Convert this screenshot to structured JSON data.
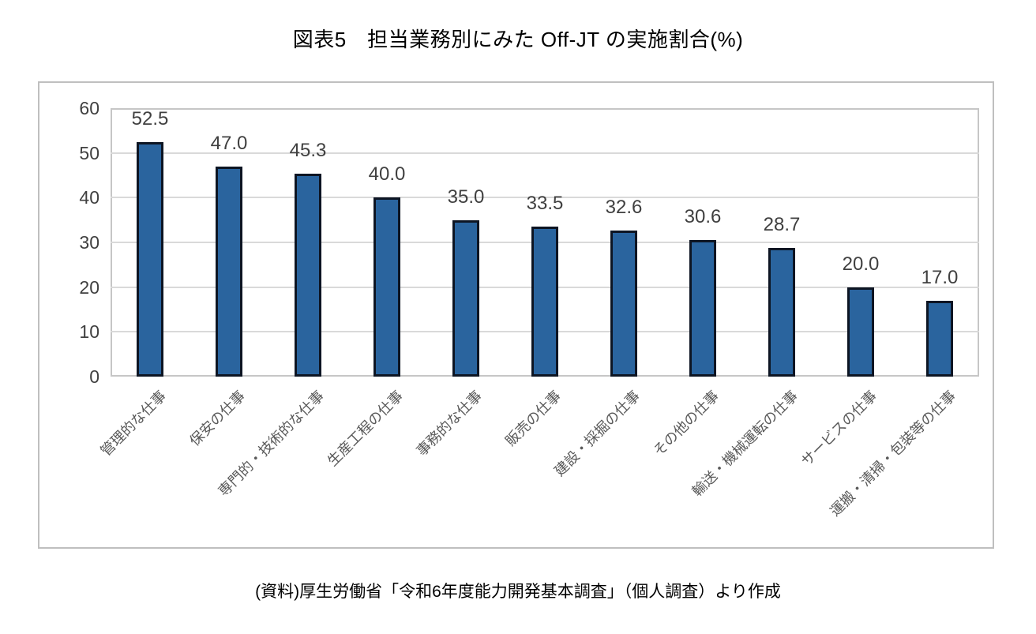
{
  "page": {
    "title": "図表5　担当業務別にみた Off-JT の実施割合(%)",
    "source_note": "(資料)厚生労働省「令和6年度能力開発基本調査」（個人調査）より作成"
  },
  "chart_data": {
    "type": "bar",
    "title": "図表5　担当業務別にみた Off-JT の実施割合(%)",
    "categories": [
      "管理的な仕事",
      "保安の仕事",
      "専門的・技術的な仕事",
      "生産工程の仕事",
      "事務的な仕事",
      "販売の仕事",
      "建設・採掘の仕事",
      "その他の仕事",
      "輸送・機械運転の仕事",
      "サービスの仕事",
      "運搬・清掃・包装等の仕事"
    ],
    "values": [
      52.5,
      47.0,
      45.3,
      40.0,
      35.0,
      33.5,
      32.6,
      30.6,
      28.7,
      20.0,
      17.0
    ],
    "value_labels": [
      "52.5",
      "47.0",
      "45.3",
      "40.0",
      "35.0",
      "33.5",
      "32.6",
      "30.6",
      "28.7",
      "20.0",
      "17.0"
    ],
    "xlabel": "",
    "ylabel": "",
    "ylim": [
      0,
      60
    ],
    "yticks": [
      0,
      10,
      20,
      30,
      40,
      50,
      60
    ],
    "grid": true,
    "legend": "none",
    "colors": {
      "bar_fill": "#2A649E",
      "bar_border": "#0D1523",
      "gridline": "#D9D9D9",
      "plot_border": "#C6C6C6",
      "chart_border": "#BFBFBF",
      "tick_label": "#404040",
      "value_label": "#404040",
      "category_label": "#595959",
      "title_text": "#000000",
      "source_text": "#000000"
    }
  }
}
